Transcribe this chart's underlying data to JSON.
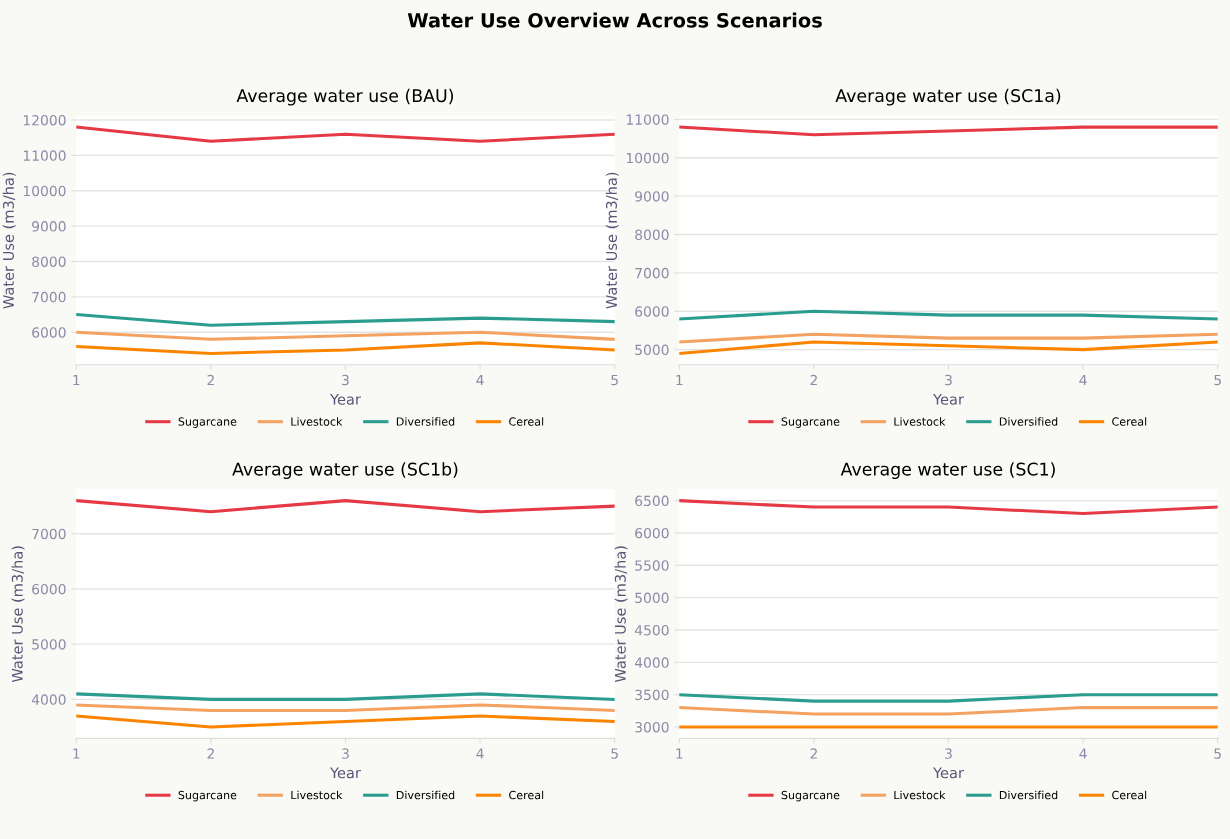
{
  "chart_data": [
    {
      "type": "line",
      "title": "Average water use (BAU)",
      "xlabel": "Year",
      "ylabel": "Water Use (m3/ha)",
      "annotations": [
        "Water Use Overview Across Scenarios"
      ],
      "x": [
        1,
        2,
        3,
        4,
        5
      ],
      "xlim": [
        1,
        5
      ],
      "xticks": [
        1,
        2,
        3,
        4,
        5
      ],
      "ylim": [
        5080,
        12120
      ],
      "yticks": [
        6000,
        7000,
        8000,
        9000,
        10000,
        11000,
        12000
      ],
      "grid": "y",
      "legend": "bottom",
      "marker": "none",
      "line_style": "solid",
      "series": [
        {
          "name": "Sugarcane",
          "color": "#e63946",
          "values": [
            11800,
            11400,
            11600,
            11400,
            11600
          ]
        },
        {
          "name": "Livestock",
          "color": "#f4a261",
          "values": [
            6000,
            5800,
            5900,
            6000,
            5800
          ]
        },
        {
          "name": "Diversified",
          "color": "#2a9d8f",
          "values": [
            6500,
            6200,
            6300,
            6400,
            6300
          ]
        },
        {
          "name": "Cereal",
          "color": "#fb8500",
          "values": [
            5600,
            5400,
            5500,
            5700,
            5500
          ]
        }
      ]
    },
    {
      "type": "line",
      "title": "Average water use (SC1a)",
      "xlabel": "Year",
      "ylabel": "Water Use (m3/ha)",
      "x": [
        1,
        2,
        3,
        4,
        5
      ],
      "xlim": [
        1,
        5
      ],
      "xticks": [
        1,
        2,
        3,
        4,
        5
      ],
      "ylim": [
        4605,
        11095
      ],
      "yticks": [
        5000,
        6000,
        7000,
        8000,
        9000,
        10000,
        11000
      ],
      "grid": "y",
      "legend": "bottom",
      "marker": "none",
      "line_style": "solid",
      "series": [
        {
          "name": "Sugarcane",
          "color": "#e63946",
          "values": [
            10800,
            10600,
            10700,
            10800,
            10800
          ]
        },
        {
          "name": "Livestock",
          "color": "#f4a261",
          "values": [
            5200,
            5400,
            5300,
            5300,
            5400
          ]
        },
        {
          "name": "Diversified",
          "color": "#2a9d8f",
          "values": [
            5800,
            6000,
            5900,
            5900,
            5800
          ]
        },
        {
          "name": "Cereal",
          "color": "#fb8500",
          "values": [
            4900,
            5200,
            5100,
            5000,
            5200
          ]
        }
      ]
    },
    {
      "type": "line",
      "title": "Average water use (SC1b)",
      "xlabel": "Year",
      "ylabel": "Water Use (m3/ha)",
      "x": [
        1,
        2,
        3,
        4,
        5
      ],
      "xlim": [
        1,
        5
      ],
      "xticks": [
        1,
        2,
        3,
        4,
        5
      ],
      "ylim": [
        3295,
        7805
      ],
      "yticks": [
        4000,
        5000,
        6000,
        7000
      ],
      "grid": "y",
      "legend": "bottom",
      "marker": "none",
      "line_style": "solid",
      "series": [
        {
          "name": "Sugarcane",
          "color": "#e63946",
          "values": [
            7600,
            7400,
            7600,
            7400,
            7500
          ]
        },
        {
          "name": "Livestock",
          "color": "#f4a261",
          "values": [
            3900,
            3800,
            3800,
            3900,
            3800
          ]
        },
        {
          "name": "Diversified",
          "color": "#2a9d8f",
          "values": [
            4100,
            4000,
            4000,
            4100,
            4000
          ]
        },
        {
          "name": "Cereal",
          "color": "#fb8500",
          "values": [
            3700,
            3500,
            3600,
            3700,
            3600
          ]
        }
      ]
    },
    {
      "type": "line",
      "title": "Average water use (SC1)",
      "xlabel": "Year",
      "ylabel": "Water Use (m3/ha)",
      "x": [
        1,
        2,
        3,
        4,
        5
      ],
      "xlim": [
        1,
        5
      ],
      "xticks": [
        1,
        2,
        3,
        4,
        5
      ],
      "ylim": [
        2825,
        6675
      ],
      "yticks": [
        3000,
        3500,
        4000,
        4500,
        5000,
        5500,
        6000,
        6500
      ],
      "grid": "y",
      "legend": "bottom",
      "marker": "none",
      "line_style": "solid",
      "series": [
        {
          "name": "Sugarcane",
          "color": "#e63946",
          "values": [
            6500,
            6400,
            6400,
            6300,
            6400
          ]
        },
        {
          "name": "Livestock",
          "color": "#f4a261",
          "values": [
            3300,
            3200,
            3200,
            3300,
            3300
          ]
        },
        {
          "name": "Diversified",
          "color": "#2a9d8f",
          "values": [
            3500,
            3400,
            3400,
            3500,
            3500
          ]
        },
        {
          "name": "Cereal",
          "color": "#fb8500",
          "values": [
            3000,
            3000,
            3000,
            3000,
            3000
          ]
        }
      ]
    }
  ]
}
